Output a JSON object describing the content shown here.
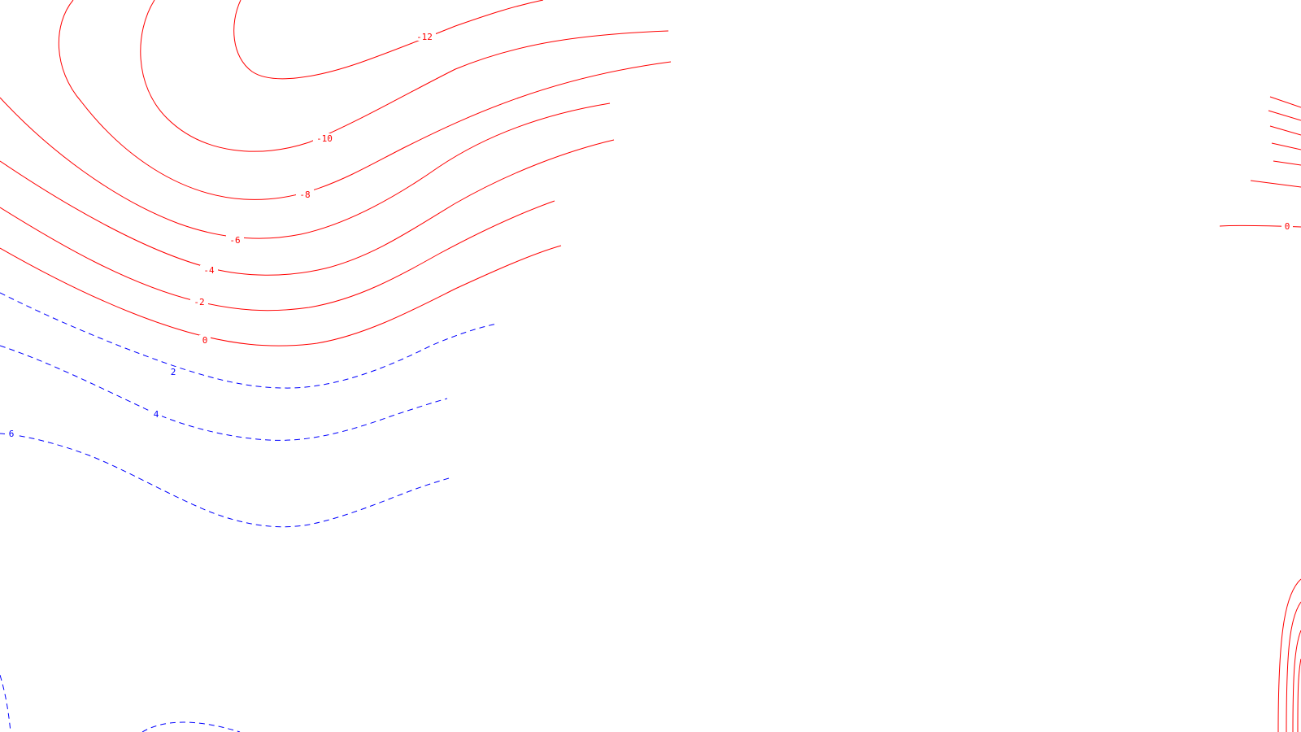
{
  "map": {
    "colors": {
      "negative": "#ff0000",
      "positive": "#0000ff",
      "background": "#ffffff"
    },
    "line_styles": {
      "negative": "solid",
      "positive": "dashed"
    },
    "contours": [
      {
        "value": -12,
        "label": "-12",
        "sign": "negative",
        "path_id": "c-12a"
      },
      {
        "value": -12,
        "label": "",
        "sign": "negative",
        "path_id": "c-12b"
      },
      {
        "value": -10,
        "label": "-10",
        "sign": "negative",
        "path_id": "c-10"
      },
      {
        "value": -8,
        "label": "-8",
        "sign": "negative",
        "path_id": "c-8"
      },
      {
        "value": -6,
        "label": "-6",
        "sign": "negative",
        "path_id": "c-6"
      },
      {
        "value": -4,
        "label": "-4",
        "sign": "negative",
        "path_id": "c-4"
      },
      {
        "value": -2,
        "label": "-2",
        "sign": "negative",
        "path_id": "c-2"
      },
      {
        "value": 0,
        "label": "0",
        "sign": "negative",
        "path_id": "c0"
      },
      {
        "value": 2,
        "label": "2",
        "sign": "positive",
        "path_id": "c2"
      },
      {
        "value": 4,
        "label": "4",
        "sign": "positive",
        "path_id": "c4"
      },
      {
        "value": 6,
        "label": "6",
        "sign": "positive",
        "path_id": "c6"
      },
      {
        "value": 0,
        "label": "0",
        "sign": "negative",
        "path_id": "r0"
      }
    ]
  }
}
